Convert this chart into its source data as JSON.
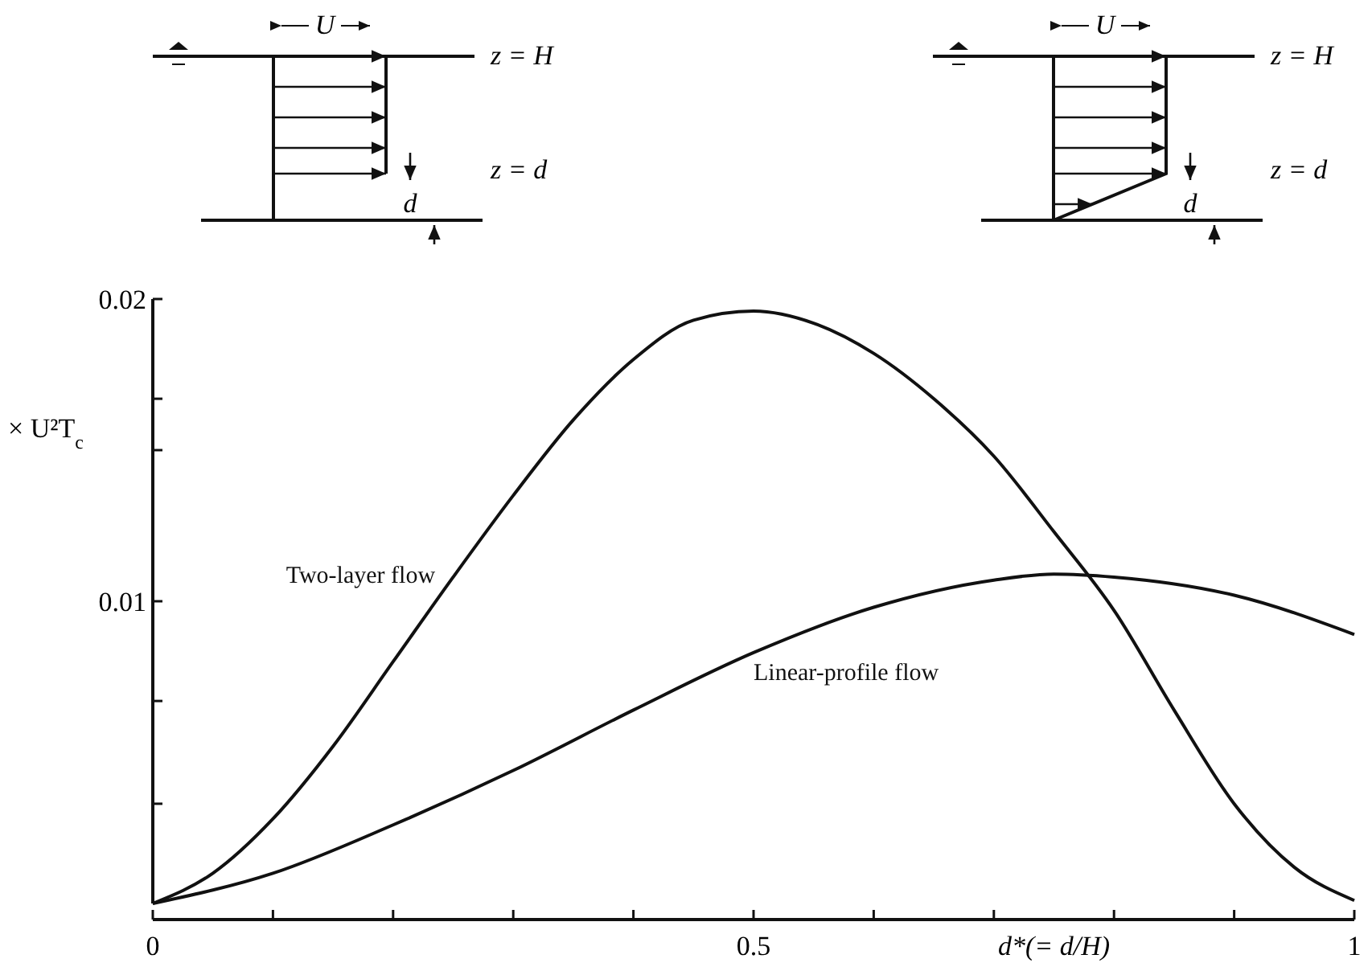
{
  "chart_data": {
    "type": "line",
    "ylabel": "× U²T$_{c}$",
    "xlabel": "d*(= d/H)",
    "x": [
      0,
      0.05,
      0.1,
      0.15,
      0.2,
      0.25,
      0.3,
      0.35,
      0.4,
      0.45,
      0.5,
      0.55,
      0.6,
      0.65,
      0.7,
      0.75,
      0.8,
      0.85,
      0.9,
      0.95,
      1
    ],
    "series": [
      {
        "name": "Two-layer flow",
        "color": "#111111",
        "values": [
          0,
          0.001,
          0.0028,
          0.0052,
          0.008,
          0.0108,
          0.0135,
          0.016,
          0.018,
          0.0193,
          0.0196,
          0.0192,
          0.0182,
          0.0167,
          0.0148,
          0.0123,
          0.0097,
          0.0064,
          0.0033,
          0.0012,
          0.0001
        ]
      },
      {
        "name": "Linear-profile flow",
        "color": "#111111",
        "x": [
          0,
          0.1,
          0.2,
          0.3,
          0.4,
          0.5,
          0.6,
          0.7,
          0.75,
          0.8,
          0.9,
          1
        ],
        "values": [
          0,
          0.001,
          0.0026,
          0.0044,
          0.0064,
          0.0083,
          0.0098,
          0.0107,
          0.0109,
          0.0108,
          0.0102,
          0.0089
        ]
      }
    ],
    "xlim": [
      0,
      1
    ],
    "xticks": [
      0,
      {
        "value": 0.1,
        "label": null
      },
      {
        "value": 0.2,
        "label": null
      },
      {
        "value": 0.3,
        "label": null
      },
      {
        "value": 0.4,
        "label": null
      },
      0.5,
      {
        "value": 0.6,
        "label": null
      },
      {
        "value": 0.7,
        "label": null
      },
      {
        "value": 0.8,
        "label": null
      },
      {
        "value": 0.9,
        "label": null
      },
      1
    ],
    "ylim": [
      0,
      0.02
    ],
    "yticks": [
      {
        "value": 0.0033,
        "label": null
      },
      {
        "value": 0.0067,
        "label": null
      },
      0.01,
      {
        "value": 0.015,
        "label": null
      },
      {
        "value": 0.0167,
        "label": null
      },
      0.02
    ],
    "grid": false,
    "marker": "none",
    "line_style": "solid",
    "annotations": [
      "U",
      "z = H",
      "z = d",
      "d",
      "U",
      "z = H",
      "z = d",
      "d"
    ]
  }
}
